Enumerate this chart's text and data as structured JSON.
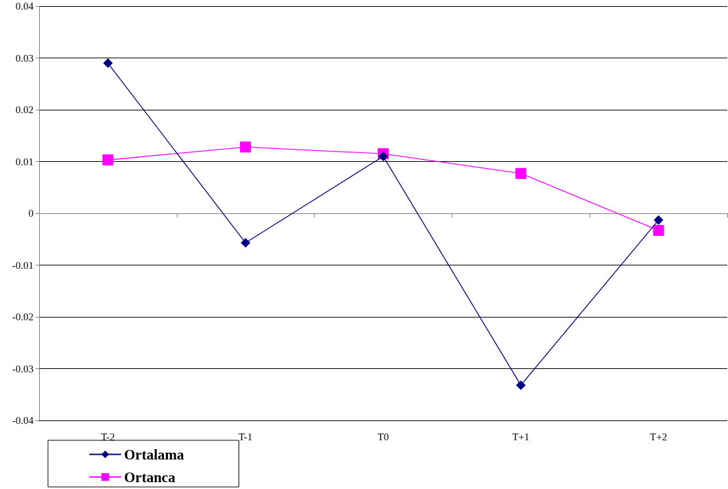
{
  "chart_data": {
    "type": "line",
    "categories": [
      "T-2",
      "T-1",
      "T0",
      "T+1",
      "T+2"
    ],
    "series": [
      {
        "name": "Ortalama",
        "color": "#000080",
        "marker": "diamond",
        "values": [
          0.029,
          -0.0057,
          0.011,
          -0.0332,
          -0.0013
        ]
      },
      {
        "name": "Ortanca",
        "color": "#ff00ff",
        "marker": "square",
        "values": [
          0.0103,
          0.0128,
          0.0115,
          0.0077,
          -0.0033
        ]
      }
    ],
    "ylim": [
      -0.04,
      0.04
    ],
    "yticks": [
      -0.04,
      -0.03,
      -0.02,
      -0.01,
      0,
      0.01,
      0.02,
      0.03,
      0.04
    ],
    "grid": "y",
    "legend": "bottom left",
    "line_style": "solid"
  }
}
